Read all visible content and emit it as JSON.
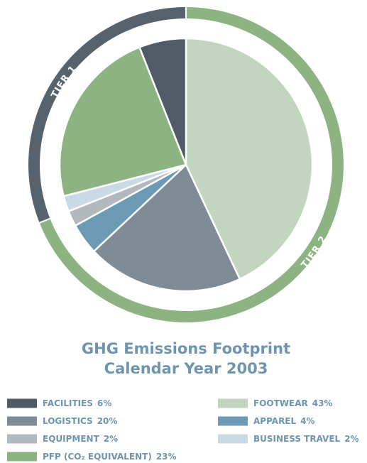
{
  "chart_data": {
    "type": "pie",
    "title": "GHG Emissions Footprint",
    "subtitle": "Calendar Year 2003",
    "categories": [
      "FOOTWEAR",
      "LOGISTICS",
      "APPAREL",
      "EQUIPMENT",
      "BUSINESS TRAVEL",
      "PFP (CO₂ EQUIVALENT)",
      "FACILITIES"
    ],
    "values": [
      43,
      20,
      4,
      2,
      2,
      23,
      6
    ],
    "value_labels": [
      "43%",
      "20%",
      "4%",
      "2%",
      "2%",
      "23%",
      "6%"
    ],
    "colors": [
      "#c2d6bf",
      "#7f8c96",
      "#6c9ab5",
      "#b2b8bd",
      "#c9dae4",
      "#8db383",
      "#4f5b66"
    ],
    "tiers": [
      {
        "label": "TIER 1",
        "color": "#56626c",
        "categories": [
          "BUSINESS TRAVEL",
          "PFP (CO₂ EQUIVALENT)",
          "FACILITIES"
        ]
      },
      {
        "label": "TIER 2",
        "color": "#8db383",
        "categories": [
          "FOOTWEAR",
          "LOGISTICS",
          "APPAREL",
          "EQUIPMENT"
        ]
      }
    ]
  }
}
